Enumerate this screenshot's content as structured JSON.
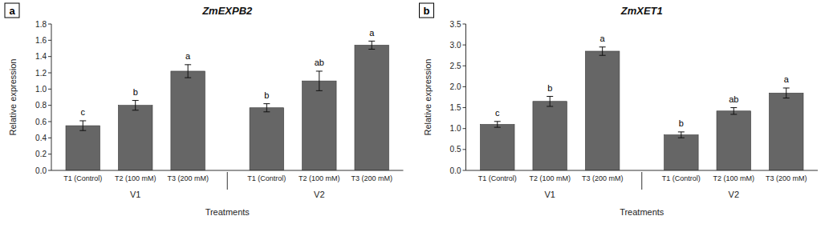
{
  "chart_data": [
    {
      "type": "bar",
      "title": "ZmEXPB2",
      "panel_label": "a",
      "xlabel": "Treatments",
      "ylabel": "Relative expression",
      "categories": [
        "T1 (Control)",
        "T2 (100 mM)",
        "T3 (200 mM)",
        "T1 (Control)",
        "T2 (100 mM)",
        "T3 (200 mM)"
      ],
      "group_labels": [
        "V1",
        "V2"
      ],
      "values": [
        0.55,
        0.8,
        1.22,
        0.77,
        1.1,
        1.54
      ],
      "errors": [
        0.06,
        0.06,
        0.08,
        0.05,
        0.12,
        0.05
      ],
      "annotations": [
        "c",
        "b",
        "a",
        "b",
        "ab",
        "a"
      ],
      "color": "#666666",
      "ylim": [
        0,
        1.8
      ],
      "yticks": [
        {
          "value": 0,
          "label": "0.0"
        },
        0.2,
        0.4,
        0.6,
        0.8,
        {
          "value": 1.0,
          "label": "1.0"
        },
        1.2,
        1.4,
        1.6,
        1.8
      ],
      "grid": false
    },
    {
      "type": "bar",
      "title": "ZmXET1",
      "panel_label": "b",
      "xlabel": "Treatments",
      "ylabel": "Relative expression",
      "categories": [
        "T1 (Control)",
        "T2 (100 mM)",
        "T3 (200 mM)",
        "T1 (Control)",
        "T2 (100 mM)",
        "T3 (200 mM)"
      ],
      "group_labels": [
        "V1",
        "V2"
      ],
      "values": [
        1.1,
        1.65,
        2.85,
        0.85,
        1.42,
        1.85
      ],
      "errors": [
        0.07,
        0.12,
        0.1,
        0.07,
        0.08,
        0.12
      ],
      "annotations": [
        "c",
        "b",
        "a",
        "b",
        "ab",
        "a"
      ],
      "color": "#666666",
      "ylim": [
        0,
        3.5
      ],
      "yticks": [
        {
          "value": 0,
          "label": "0.0"
        },
        0.5,
        {
          "value": 1.0,
          "label": "1.0"
        },
        1.5,
        {
          "value": 2.0,
          "label": "2.0"
        },
        2.5,
        {
          "value": 3.0,
          "label": "3.0"
        },
        3.5
      ],
      "grid": false
    }
  ]
}
